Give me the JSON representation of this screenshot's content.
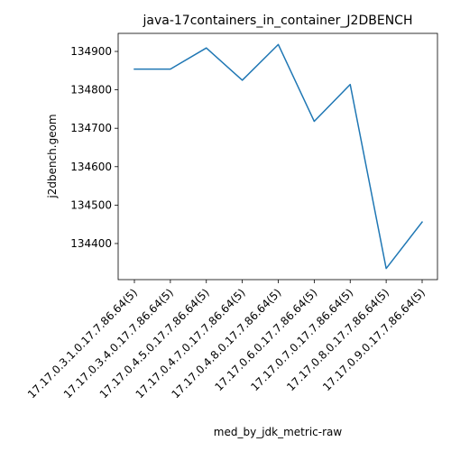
{
  "chart_data": {
    "type": "line",
    "title": "java-17containers_in_container_J2DBENCH",
    "xlabel": "med_by_jdk_metric-raw",
    "ylabel": "j2dbench.geom",
    "categories": [
      "17.17.0.3.1.0.17.7.86.64(5)",
      "17.17.0.3.4.0.17.7.86.64(5)",
      "17.17.0.4.5.0.17.7.86.64(5)",
      "17.17.0.4.7.0.17.7.86.64(5)",
      "17.17.0.4.8.0.17.7.86.64(5)",
      "17.17.0.6.0.17.7.86.64(5)",
      "17.17.0.7.0.17.7.86.64(5)",
      "17.17.0.8.0.17.7.86.64(5)",
      "17.17.0.9.0.17.7.86.64(5)"
    ],
    "series": [
      {
        "values": [
          134854,
          134854,
          134909,
          134825,
          134918,
          134718,
          134814,
          134335,
          134456
        ],
        "color": "#1f77b4"
      }
    ],
    "yticks": [
      134400,
      134500,
      134600,
      134700,
      134800,
      134900
    ],
    "ylim": [
      134306,
      134947
    ],
    "grid": false,
    "legend": "none"
  }
}
